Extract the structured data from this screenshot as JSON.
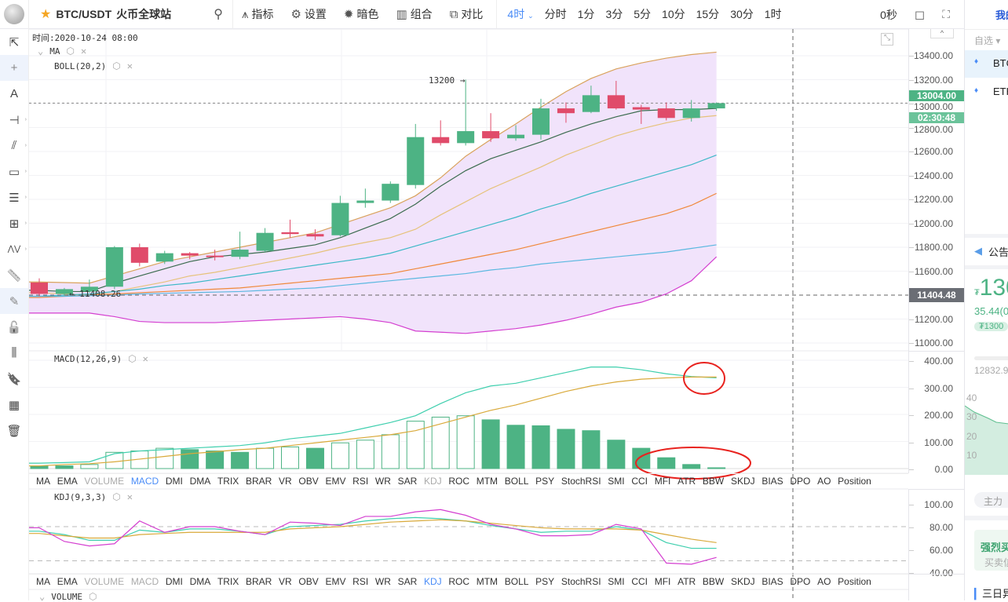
{
  "header": {
    "symbol": "BTC/USDT",
    "exchange": "火币全球站",
    "tools": [
      {
        "icon": "indicator-icon",
        "label": "指标"
      },
      {
        "icon": "gear-icon",
        "label": "设置"
      },
      {
        "icon": "sun-icon",
        "label": "暗色"
      },
      {
        "icon": "layout-icon",
        "label": "组合"
      },
      {
        "icon": "compare-icon",
        "label": "对比"
      }
    ],
    "periods": [
      "4时",
      "分时",
      "1分",
      "3分",
      "5分",
      "10分",
      "15分",
      "30分",
      "1时"
    ],
    "active_period": "4时",
    "countdown": "0秒"
  },
  "left_tools": [
    "cursor-icon",
    "crosshair-icon",
    "text-icon",
    "horizontal-line-icon",
    "ray-icon",
    "rectangle-icon",
    "parallel-lines-icon",
    "grid-icon",
    "wave-icon",
    "ruler-icon",
    "pen-icon",
    "lock-icon",
    "bars-icon",
    "bookmark-icon",
    "calendar-icon",
    "trash-icon"
  ],
  "main": {
    "time_label": "时间:2020-10-24 08:00",
    "indicators": [
      "MA",
      "BOLL(20,2)"
    ],
    "high_label": "13200",
    "low_label": "11408.26",
    "last_price": "13004.00",
    "countdown_tag": "02:30:48",
    "cross_price": "11404.48",
    "ticks": [
      "13400.00",
      "13200.00",
      "13000.00",
      "12800.00",
      "12600.00",
      "12400.00",
      "12200.00",
      "12000.00",
      "11800.00",
      "11600.00",
      "11200.00",
      "11000.00"
    ]
  },
  "macd": {
    "label": "MACD(12,26,9)",
    "ticks": [
      "400.00",
      "300.00",
      "200.00",
      "100.00",
      "0.00"
    ]
  },
  "kdj": {
    "label": "KDJ(9,3,3)",
    "ticks": [
      "100.00",
      "80.00",
      "60.00",
      "40.00"
    ]
  },
  "volume": {
    "label": "VOLUME"
  },
  "indicator_tabs": [
    "MA",
    "EMA",
    "VOLUME",
    "MACD",
    "DMI",
    "DMA",
    "TRIX",
    "BRAR",
    "VR",
    "OBV",
    "EMV",
    "RSI",
    "WR",
    "SAR",
    "KDJ",
    "ROC",
    "MTM",
    "BOLL",
    "PSY",
    "StochRSI",
    "SMI",
    "CCI",
    "MFI",
    "ATR",
    "BBW",
    "SKDJ",
    "BIAS",
    "DPO",
    "AO",
    "Position"
  ],
  "colors": {
    "up": "#4db384",
    "down": "#e04b6a",
    "accent": "#4a8cf7",
    "boll_fill": "#f1e3fb",
    "ma5": "#3b6b4e",
    "ma10": "#e6c27a",
    "ma30": "#3cb8c7",
    "ma60": "#f0883a",
    "ma120": "#5bb8e0",
    "boll_upper": "#d9a25c",
    "boll_lower": "#d43fd0",
    "annotation": "#e8231f"
  },
  "chart_data": {
    "type": "candlestick",
    "ohlc": [
      [
        11505,
        11540,
        11390,
        11410
      ],
      [
        11410,
        11460,
        11395,
        11450
      ],
      [
        11430,
        11530,
        11420,
        11470
      ],
      [
        11470,
        11810,
        11450,
        11800
      ],
      [
        11800,
        11830,
        11640,
        11670
      ],
      [
        11680,
        11770,
        11660,
        11750
      ],
      [
        11750,
        11760,
        11700,
        11730
      ],
      [
        11730,
        11780,
        11690,
        11725
      ],
      [
        11720,
        11930,
        11700,
        11780
      ],
      [
        11770,
        11960,
        11760,
        11920
      ],
      [
        11925,
        12030,
        11880,
        11910
      ],
      [
        11910,
        11950,
        11860,
        11890
      ],
      [
        11900,
        12230,
        11890,
        12170
      ],
      [
        12170,
        12290,
        12130,
        12190
      ],
      [
        12190,
        12350,
        12170,
        12330
      ],
      [
        12320,
        12830,
        12290,
        12720
      ],
      [
        12720,
        12860,
        12650,
        12670
      ],
      [
        12670,
        13200,
        12650,
        12770
      ],
      [
        12770,
        12920,
        12680,
        12710
      ],
      [
        12710,
        12820,
        12690,
        12740
      ],
      [
        12740,
        13040,
        12700,
        12960
      ],
      [
        12960,
        13010,
        12840,
        12920
      ],
      [
        12930,
        13150,
        12920,
        13070
      ],
      [
        13070,
        13190,
        12950,
        12960
      ],
      [
        12970,
        12990,
        12830,
        12950
      ],
      [
        12960,
        13010,
        12860,
        12880
      ],
      [
        12880,
        13030,
        12850,
        12960
      ],
      [
        12960,
        13010,
        12940,
        13004
      ]
    ],
    "ma": [
      [
        11440,
        11430,
        11430,
        11500,
        11560,
        11620,
        11680,
        11720,
        11740,
        11760,
        11790,
        11820,
        11880,
        11960,
        12040,
        12160,
        12310,
        12440,
        12540,
        12610,
        12680,
        12760,
        12830,
        12890,
        12940,
        12950,
        12950,
        12960
      ],
      [
        11420,
        11410,
        11400,
        11430,
        11470,
        11510,
        11560,
        11590,
        11630,
        11670,
        11710,
        11750,
        11800,
        11840,
        11880,
        11950,
        12070,
        12180,
        12290,
        12380,
        12470,
        12570,
        12650,
        12730,
        12790,
        12840,
        12880,
        12900
      ],
      [
        11390,
        11400,
        11410,
        11430,
        11450,
        11480,
        11500,
        11530,
        11560,
        11590,
        11620,
        11650,
        11680,
        11710,
        11750,
        11810,
        11870,
        11930,
        11990,
        12050,
        12120,
        12180,
        12250,
        12310,
        12370,
        12430,
        12490,
        12570
      ],
      [
        11380,
        11390,
        11400,
        11410,
        11420,
        11430,
        11440,
        11450,
        11460,
        11480,
        11500,
        11520,
        11540,
        11560,
        11580,
        11620,
        11660,
        11700,
        11740,
        11780,
        11830,
        11880,
        11930,
        11980,
        12030,
        12080,
        12150,
        12250
      ],
      [
        11390,
        11390,
        11395,
        11400,
        11410,
        11415,
        11420,
        11425,
        11430,
        11440,
        11450,
        11460,
        11480,
        11500,
        11520,
        11540,
        11560,
        11580,
        11610,
        11630,
        11660,
        11680,
        11700,
        11720,
        11740,
        11760,
        11790,
        11820
      ]
    ],
    "boll_upper": [
      11510,
      11505,
      11500,
      11560,
      11620,
      11680,
      11720,
      11760,
      11800,
      11840,
      11880,
      11920,
      11990,
      12060,
      12130,
      12230,
      12380,
      12560,
      12700,
      12830,
      12970,
      13100,
      13210,
      13290,
      13340,
      13380,
      13410,
      13430
    ],
    "boll_lower": [
      11250,
      11250,
      11250,
      11220,
      11180,
      11170,
      11170,
      11170,
      11180,
      11190,
      11200,
      11210,
      11220,
      11200,
      11170,
      11100,
      11090,
      11080,
      11100,
      11120,
      11150,
      11190,
      11240,
      11300,
      11340,
      11410,
      11520,
      11720
    ],
    "price_range": [
      11000,
      13400
    ],
    "macd_hist": [
      10,
      10,
      15,
      60,
      65,
      75,
      70,
      65,
      60,
      75,
      80,
      75,
      95,
      105,
      125,
      175,
      190,
      195,
      180,
      160,
      158,
      145,
      140,
      105,
      75,
      40,
      15,
      3
    ],
    "macd_dif": [
      20,
      22,
      25,
      55,
      65,
      70,
      75,
      80,
      85,
      95,
      110,
      120,
      130,
      150,
      170,
      195,
      240,
      280,
      305,
      315,
      335,
      355,
      375,
      375,
      365,
      350,
      340,
      335
    ],
    "macd_dea": [
      10,
      15,
      18,
      25,
      35,
      45,
      55,
      62,
      70,
      75,
      85,
      95,
      105,
      115,
      125,
      140,
      165,
      190,
      215,
      235,
      260,
      285,
      305,
      320,
      330,
      335,
      338,
      338
    ],
    "macd_range": [
      -20,
      430
    ],
    "kdj_k": [
      76,
      73,
      68,
      68,
      77,
      75,
      78,
      78,
      76,
      73,
      80,
      81,
      82,
      85,
      87,
      88,
      87,
      85,
      81,
      78,
      75,
      76,
      76,
      80,
      77,
      66,
      61,
      61
    ],
    "kdj_d": [
      74,
      72,
      70,
      70,
      73,
      74,
      75,
      75,
      75,
      75,
      78,
      79,
      80,
      82,
      84,
      85,
      86,
      85,
      83,
      81,
      79,
      78,
      78,
      78,
      77,
      73,
      69,
      66
    ],
    "kdj_j": [
      79,
      67,
      63,
      65,
      85,
      75,
      80,
      80,
      76,
      73,
      84,
      83,
      81,
      89,
      89,
      93,
      95,
      90,
      82,
      78,
      72,
      72,
      73,
      82,
      78,
      48,
      47,
      53
    ],
    "kdj_range": [
      33,
      108
    ]
  },
  "right_panel": {
    "tab": "我的",
    "watch": "自选",
    "coins": [
      "BTC",
      "ETH"
    ],
    "notice": "公告",
    "price": "130",
    "change": "35.44(0",
    "price_tag": "₮1300",
    "depth_price": "12832.9",
    "depth_ticks": [
      "40",
      "30",
      "20",
      "10"
    ],
    "main_force": "主力",
    "signal": "强烈买",
    "signal_sub": "买卖信",
    "section": "三日异"
  }
}
